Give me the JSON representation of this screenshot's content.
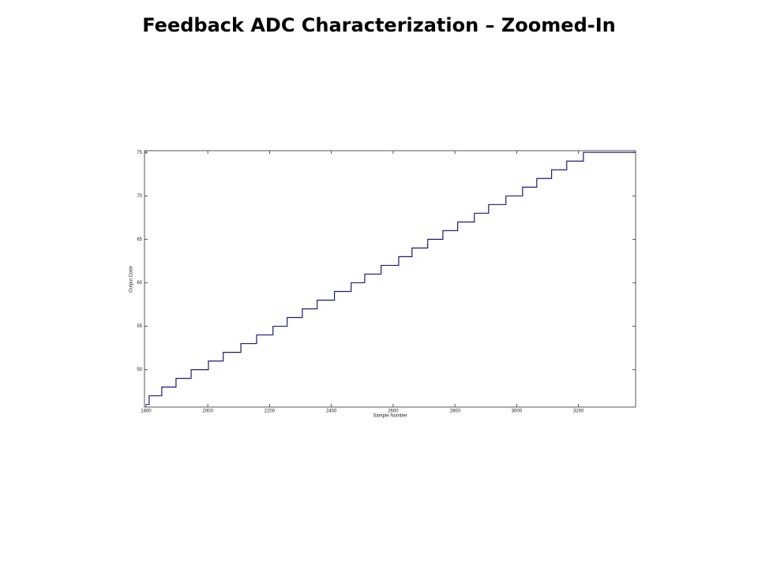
{
  "chart_data": {
    "type": "line",
    "title": "Feedback ADC Characterization – Zoomed-In",
    "xlabel": "Sample Number",
    "ylabel": "Output Code",
    "x": [
      1800,
      1810,
      1810,
      1851,
      1851,
      1897,
      1897,
      1946,
      1946,
      2002,
      2002,
      2050,
      2050,
      2107,
      2107,
      2158,
      2158,
      2211,
      2211,
      2257,
      2257,
      2306,
      2306,
      2354,
      2354,
      2410,
      2410,
      2464,
      2464,
      2508,
      2508,
      2561,
      2561,
      2618,
      2618,
      2661,
      2661,
      2712,
      2712,
      2761,
      2761,
      2809,
      2809,
      2863,
      2863,
      2909,
      2909,
      2965,
      2965,
      3019,
      3019,
      3065,
      3065,
      3113,
      3113,
      3162,
      3162,
      3216,
      3216,
      3385
    ],
    "series": [
      {
        "color": "#1c1c7c",
        "values": [
          46,
          46,
          47,
          47,
          48,
          48,
          49,
          49,
          50,
          50,
          51,
          51,
          52,
          52,
          53,
          53,
          54,
          54,
          55,
          55,
          56,
          56,
          57,
          57,
          58,
          58,
          59,
          59,
          60,
          60,
          61,
          61,
          62,
          62,
          63,
          63,
          64,
          64,
          65,
          65,
          66,
          66,
          67,
          67,
          68,
          68,
          69,
          69,
          70,
          70,
          71,
          71,
          72,
          72,
          73,
          73,
          74,
          74,
          75,
          75
        ]
      }
    ],
    "xlim": [
      1795,
      3385
    ],
    "ylim": [
      45.7,
      75.2
    ],
    "xticks": [
      1800,
      2000,
      2200,
      2400,
      2600,
      2800,
      3000,
      3200
    ],
    "yticks": [
      50,
      55,
      60,
      65,
      70,
      75
    ]
  }
}
